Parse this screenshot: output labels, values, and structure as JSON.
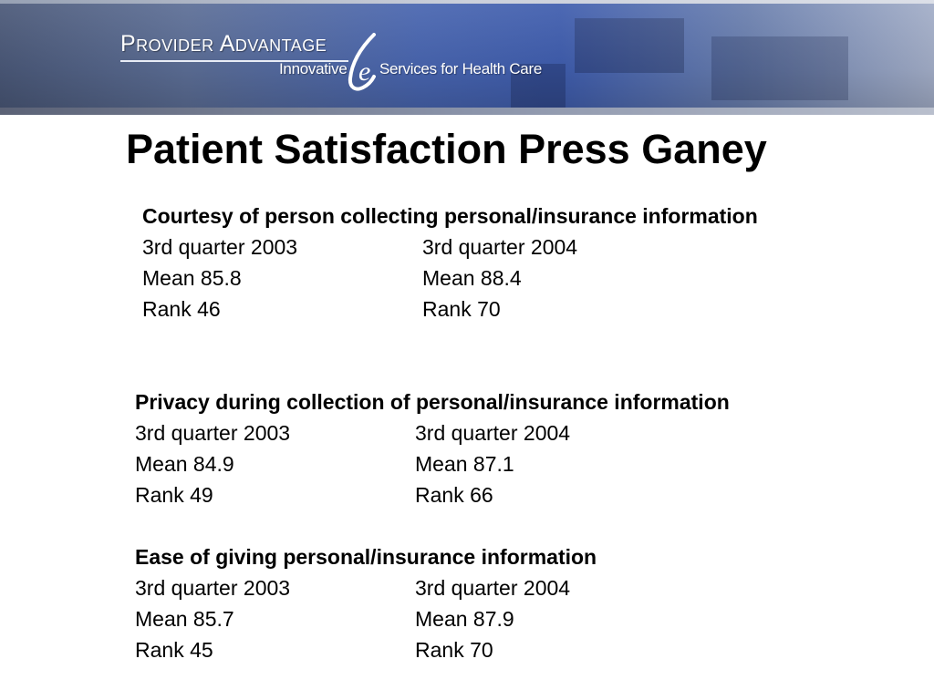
{
  "banner": {
    "brand_line1": "Provider Advantage",
    "tagline_left": "Innovative",
    "tagline_right": "Services for Health Care",
    "logo_letter": "e",
    "logo_icon": "e-swoosh-icon"
  },
  "title": "Patient Satisfaction Press Ganey",
  "sections": [
    {
      "heading": "Courtesy of person collecting personal/insurance information",
      "rows": [
        {
          "left": "3rd quarter 2003",
          "right": "3rd quarter 2004"
        },
        {
          "left": "Mean 85.8",
          "right": "Mean 88.4"
        },
        {
          "left": "Rank  46",
          "right": "Rank 70"
        }
      ]
    },
    {
      "heading": "Privacy during collection of personal/insurance information",
      "rows": [
        {
          "left": "3rd quarter 2003",
          "right": "3rd quarter 2004"
        },
        {
          "left": "Mean 84.9",
          "right": "Mean 87.1"
        },
        {
          "left": "Rank 49",
          "right": "Rank  66"
        }
      ]
    },
    {
      "heading": "Ease of giving personal/insurance information",
      "rows": [
        {
          "left": "3rd quarter 2003",
          "right": "3rd quarter 2004"
        },
        {
          "left": "Mean 85.7",
          "right": "Mean 87.9"
        },
        {
          "left": "Rank  45",
          "right": "Rank 70"
        }
      ]
    }
  ]
}
